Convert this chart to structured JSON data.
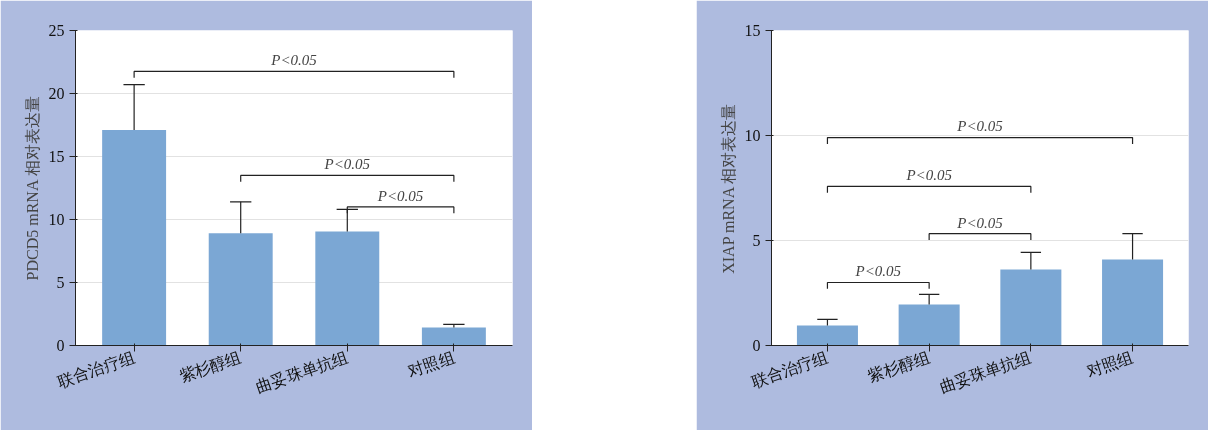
{
  "chart_data": [
    {
      "type": "bar",
      "ylabel": "PDCD5 mRNA 相对表达量",
      "categories": [
        "联合治疗组",
        "紫杉醇组",
        "曲妥珠单抗组",
        "对照组"
      ],
      "values": [
        17.1,
        8.9,
        9.05,
        1.43
      ],
      "color": "#7ba7d4",
      "errors": [
        [
          17.1,
          20.7
        ],
        [
          8.9,
          11.4
        ],
        [
          9.05,
          10.8
        ],
        [
          1.43,
          1.67
        ]
      ],
      "ylim": [
        0,
        25
      ],
      "yticks": [
        0,
        5,
        10,
        15,
        20,
        25
      ],
      "grid": "y",
      "annotations": [
        "P<0.05",
        "P<0.05",
        "P<0.05"
      ]
    },
    {
      "type": "bar",
      "ylabel": "XIAP mRNA 相对表达量",
      "categories": [
        "联合治疗组",
        "紫杉醇组",
        "曲妥珠单抗组",
        "对照组"
      ],
      "values": [
        0.95,
        1.95,
        3.62,
        4.1
      ],
      "color": "#7ba7d4",
      "errors": [
        [
          0.95,
          1.24
        ],
        [
          1.95,
          2.43
        ],
        [
          3.62,
          4.43
        ],
        [
          4.1,
          5.33
        ]
      ],
      "ylim": [
        0,
        15
      ],
      "yticks": [
        0,
        5,
        10,
        15
      ],
      "grid": "y",
      "annotations": [
        "P<0.05",
        "P<0.05",
        "P<0.05",
        "P<0.05"
      ]
    }
  ]
}
